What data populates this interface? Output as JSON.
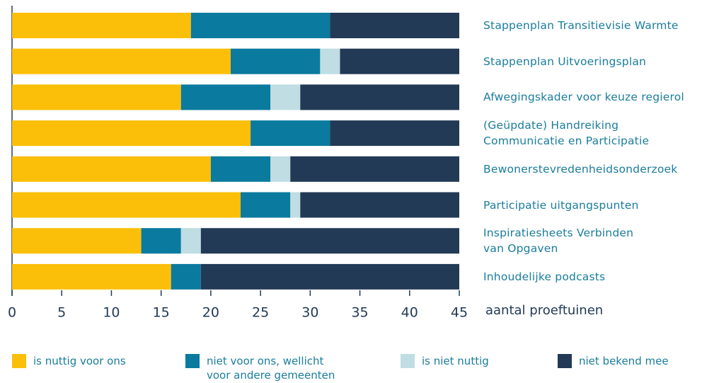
{
  "chart_data": {
    "type": "stacked_barh",
    "x_label": "aantal proeftuinen",
    "categories": [
      "Stappenplan Transitievisie Warmte",
      "Stappenplan Uitvoeringsplan",
      "Afwegingskader voor keuze regierol",
      "(Geüpdate) Handreiking\nCommunicatie en Participatie",
      "Bewonerstevredenheidsonderzoek",
      "Participatie uitgangspunten",
      "Inspiratiesheets Verbinden\nvan Opgaven",
      "Inhoudelijke podcasts"
    ],
    "series": [
      {
        "name": "is nuttig voor ons",
        "color": "#fbbf0a",
        "values": [
          18,
          22,
          17,
          24,
          20,
          23,
          13,
          16
        ]
      },
      {
        "name": "niet voor ons, wellicht\nvoor andere gemeenten",
        "color": "#0a7a9e",
        "values": [
          14,
          9,
          9,
          8,
          6,
          5,
          4,
          3
        ]
      },
      {
        "name": "is niet nuttig",
        "color": "#bfdde3",
        "values": [
          0,
          2,
          3,
          0,
          2,
          1,
          2,
          0
        ]
      },
      {
        "name": "niet bekend  mee",
        "color": "#233a56",
        "values": [
          13,
          12,
          16,
          13,
          17,
          16,
          26,
          26
        ]
      }
    ],
    "xlim": [
      0,
      45
    ],
    "xticks": [
      0,
      5,
      10,
      15,
      20,
      25,
      30,
      35,
      40,
      45
    ]
  }
}
